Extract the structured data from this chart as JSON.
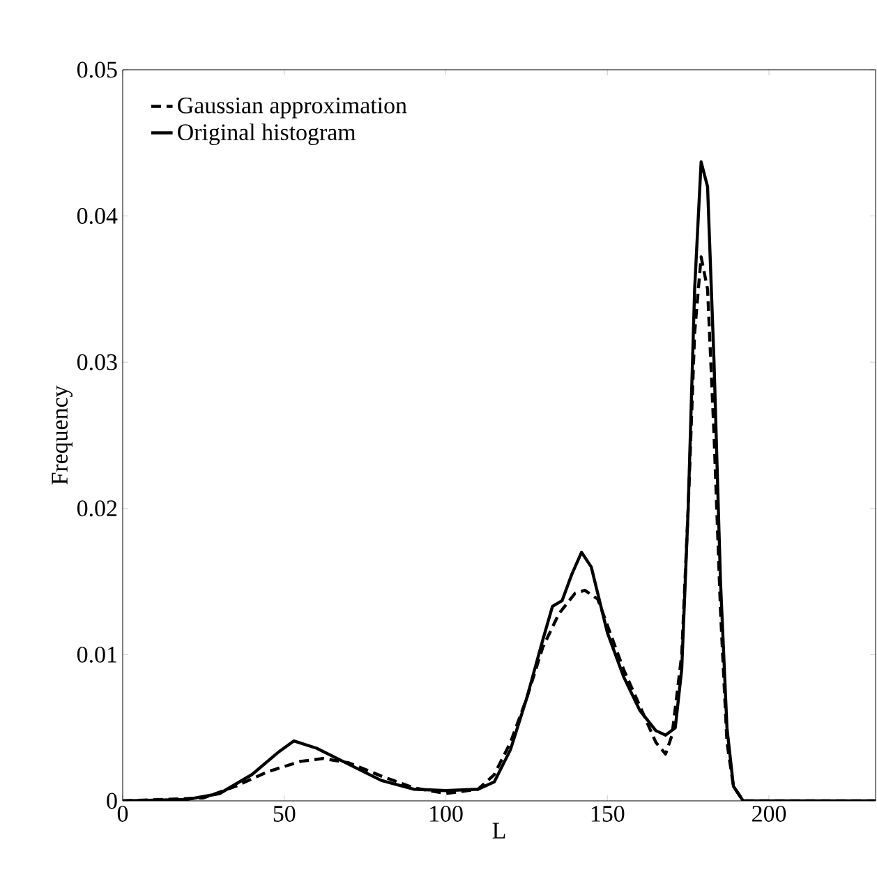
{
  "chart_data": {
    "type": "line",
    "xlabel": "L",
    "ylabel": "Frequency",
    "xlim": [
      0,
      233
    ],
    "ylim": [
      0,
      0.05
    ],
    "xticks": [
      0,
      50,
      100,
      150,
      200
    ],
    "yticks": [
      0,
      0.01,
      0.02,
      0.03,
      0.04,
      0.05
    ],
    "grid": false,
    "legend": "top left",
    "marker": "none",
    "series": [
      {
        "name": "Gaussian approximation",
        "color": "#000000",
        "line_style": "dashed",
        "x": [
          0,
          25,
          35,
          45,
          55,
          62,
          70,
          80,
          90,
          100,
          110,
          115,
          120,
          125,
          130,
          135,
          140,
          143,
          147,
          150,
          155,
          160,
          165,
          168,
          170,
          173,
          175,
          177,
          179,
          181,
          183,
          185,
          187,
          189,
          192,
          233
        ],
        "values": [
          0,
          0.0002,
          0.001,
          0.002,
          0.0027,
          0.0029,
          0.0026,
          0.0017,
          0.0009,
          0.0005,
          0.0008,
          0.0018,
          0.004,
          0.007,
          0.0105,
          0.0128,
          0.0142,
          0.0144,
          0.0138,
          0.012,
          0.009,
          0.0065,
          0.004,
          0.0032,
          0.0045,
          0.01,
          0.02,
          0.032,
          0.0372,
          0.035,
          0.025,
          0.013,
          0.004,
          0.001,
          0,
          0
        ]
      },
      {
        "name": "Original histogram",
        "color": "#000000",
        "line_style": "solid",
        "x": [
          0,
          20,
          30,
          40,
          48,
          53,
          60,
          70,
          80,
          90,
          100,
          110,
          115,
          120,
          125,
          130,
          133,
          136,
          139,
          142,
          145,
          150,
          155,
          160,
          165,
          168,
          171,
          173,
          175,
          177,
          179,
          181,
          183,
          185,
          187,
          189,
          192,
          233
        ],
        "values": [
          0,
          0.0001,
          0.0005,
          0.0018,
          0.0033,
          0.0041,
          0.0036,
          0.0025,
          0.0014,
          0.0008,
          0.0007,
          0.0008,
          0.0013,
          0.0035,
          0.007,
          0.011,
          0.0133,
          0.0137,
          0.0155,
          0.017,
          0.016,
          0.0115,
          0.0085,
          0.0062,
          0.0048,
          0.0045,
          0.005,
          0.009,
          0.02,
          0.035,
          0.0437,
          0.042,
          0.03,
          0.015,
          0.005,
          0.001,
          0,
          0
        ]
      }
    ]
  }
}
